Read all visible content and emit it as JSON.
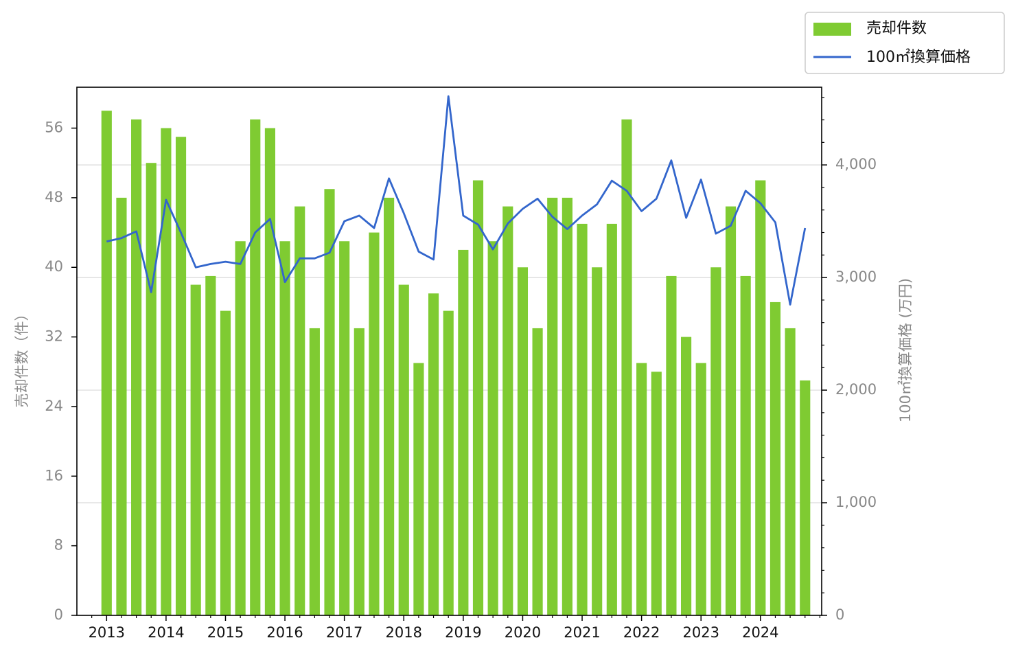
{
  "chart_data": {
    "type": "bar",
    "title": "",
    "xlabel": "",
    "ylabel": "売却件数（件）",
    "y2label": "100㎡換算価格 (万円)",
    "ylim": [
      0,
      60.7
    ],
    "y2lim": [
      0,
      4690
    ],
    "yticks": [
      0,
      8,
      16,
      24,
      32,
      40,
      48,
      56
    ],
    "y2ticks": [
      0,
      1000,
      2000,
      3000,
      4000
    ],
    "y2ticklabels": [
      "0",
      "1,000",
      "2,000",
      "3,000",
      "4,000"
    ],
    "xlim": [
      2012.5,
      2025.03
    ],
    "xticks": [
      2013,
      2014,
      2015,
      2016,
      2017,
      2018,
      2019,
      2020,
      2021,
      2022,
      2023,
      2024
    ],
    "xticklabels": [
      "2013",
      "2014",
      "2015",
      "2016",
      "2017",
      "2018",
      "2019",
      "2020",
      "2021",
      "2022",
      "2023",
      "2024"
    ],
    "x": [
      2013.0,
      2013.25,
      2013.5,
      2013.75,
      2014.0,
      2014.25,
      2014.5,
      2014.75,
      2015.0,
      2015.25,
      2015.5,
      2015.75,
      2016.0,
      2016.25,
      2016.5,
      2016.75,
      2017.0,
      2017.25,
      2017.5,
      2017.75,
      2018.0,
      2018.25,
      2018.5,
      2018.75,
      2019.0,
      2019.25,
      2019.5,
      2019.75,
      2020.0,
      2020.25,
      2020.5,
      2020.75,
      2021.0,
      2021.25,
      2021.5,
      2021.75,
      2022.0,
      2022.25,
      2022.5,
      2022.75,
      2023.0,
      2023.25,
      2023.5,
      2023.75,
      2024.0,
      2024.25,
      2024.5,
      2024.75
    ],
    "series": [
      {
        "name": "売却件数",
        "type": "bar",
        "axis": "left",
        "color": "#7fcb32",
        "values": [
          58,
          48,
          57,
          52,
          56,
          55,
          38,
          39,
          35,
          43,
          57,
          56,
          43,
          47,
          33,
          49,
          43,
          33,
          44,
          48,
          38,
          29,
          37,
          35,
          42,
          50,
          43,
          47,
          40,
          33,
          48,
          48,
          45,
          40,
          45,
          57,
          29,
          28,
          39,
          32,
          29,
          40,
          47,
          39,
          50,
          36,
          33,
          27
        ]
      },
      {
        "name": "100㎡換算価格",
        "type": "line",
        "axis": "right",
        "color": "#3366cc",
        "values": [
          3320,
          3350,
          3410,
          2870,
          3690,
          3400,
          3090,
          3120,
          3140,
          3120,
          3400,
          3520,
          2960,
          3170,
          3170,
          3220,
          3500,
          3550,
          3440,
          3880,
          3570,
          3230,
          3160,
          4610,
          3550,
          3470,
          3250,
          3480,
          3610,
          3700,
          3540,
          3430,
          3550,
          3650,
          3860,
          3770,
          3590,
          3700,
          4040,
          3530,
          3870,
          3390,
          3460,
          3770,
          3660,
          3490,
          2760,
          3440
        ]
      }
    ],
    "grid": "horizontal (right axis)",
    "legend": {
      "placement": "top-right outside",
      "entries": [
        "売却件数",
        "100㎡換算価格"
      ]
    }
  }
}
